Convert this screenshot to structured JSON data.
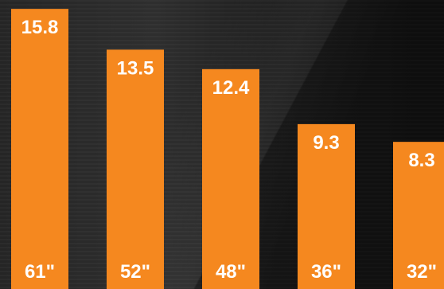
{
  "chart_data": {
    "type": "bar",
    "categories": [
      "61\"",
      "52\"",
      "48\"",
      "36\"",
      "32\""
    ],
    "values": [
      15.8,
      13.5,
      12.4,
      9.3,
      8.3
    ],
    "value_labels": [
      "15.8",
      "13.5",
      "12.4",
      "9.3",
      "8.3"
    ],
    "title": "",
    "xlabel": "",
    "ylabel": "",
    "ylim": [
      0,
      16.3
    ],
    "grid": false,
    "bar_color": "#f5881f",
    "label_color": "#ffffff"
  }
}
